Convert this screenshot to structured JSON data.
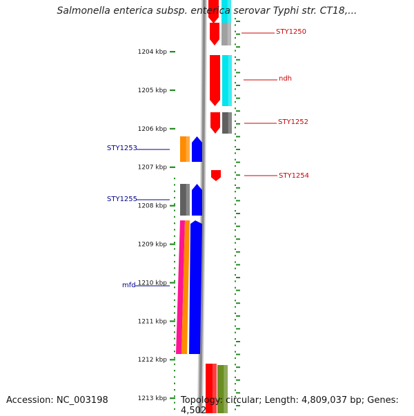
{
  "title": "Salmonella enterica subsp. enterica serovar Typhi str. CT18,...",
  "footer": {
    "accession": "Accession: NC_003198",
    "summary": "Topology: circular; Length: 4,809,037 bp; Genes: 4,502"
  },
  "ruler": {
    "unit": "kbp",
    "labels": [
      "1204 kbp",
      "1205 kbp",
      "1206 kbp",
      "1207 kbp",
      "1208 kbp",
      "1209 kbp",
      "1210 kbp",
      "1211 kbp",
      "1212 kbp",
      "1213 kbp"
    ],
    "tick_color": "#228b22"
  },
  "colors": {
    "backbone": "#8c8c8c",
    "forward_label": "#cc0000",
    "reverse_label": "#00008b"
  },
  "labeled_genes": [
    {
      "name": "STY1250",
      "strand": "forward",
      "color": "#ff0000"
    },
    {
      "name": "ndh",
      "strand": "forward",
      "color": "#ff0000"
    },
    {
      "name": "STY1252",
      "strand": "forward",
      "color": "#ff0000"
    },
    {
      "name": "STY1254",
      "strand": "forward",
      "color": "#ff0000"
    },
    {
      "name": "STY1253",
      "strand": "reverse",
      "color": "#0000ff"
    },
    {
      "name": "STY1255",
      "strand": "reverse",
      "color": "#0000ff"
    },
    {
      "name": "mfd",
      "strand": "reverse",
      "color": "#0000ff"
    }
  ],
  "lane_colors": {
    "red": "#ff0000",
    "blue": "#0000ff",
    "cyan": "#00e5ee",
    "grey": "#a0a0a0",
    "dark_grey": "#606060",
    "orange": "#ff8c00",
    "magenta": "#ff1493",
    "olive": "#6b8e23"
  }
}
